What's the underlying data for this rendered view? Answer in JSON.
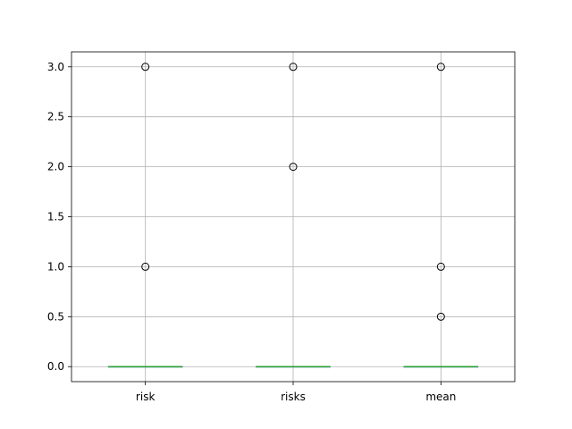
{
  "chart_data": {
    "type": "box",
    "title": "",
    "xlabel": "",
    "ylabel": "",
    "categories": [
      "risk",
      "risks",
      "mean"
    ],
    "ylim": [
      -0.15,
      3.15
    ],
    "yticks": [
      "0.0",
      "0.5",
      "1.0",
      "1.5",
      "2.0",
      "2.5",
      "3.0"
    ],
    "grid": true,
    "boxes": [
      {
        "category": "risk",
        "median": 0,
        "q1": 0,
        "q3": 0,
        "whisker_low": 0,
        "whisker_high": 0,
        "fliers": [
          1,
          3
        ]
      },
      {
        "category": "risks",
        "median": 0,
        "q1": 0,
        "q3": 0,
        "whisker_low": 0,
        "whisker_high": 0,
        "fliers": [
          2,
          3
        ]
      },
      {
        "category": "mean",
        "median": 0,
        "q1": 0,
        "q3": 0,
        "whisker_low": 0,
        "whisker_high": 0,
        "fliers": [
          0.5,
          1,
          3
        ]
      }
    ],
    "colors": {
      "median": "#2ca02c",
      "grid": "#b0b0b0",
      "axes": "#000000",
      "flier_edge": "#000000"
    }
  }
}
